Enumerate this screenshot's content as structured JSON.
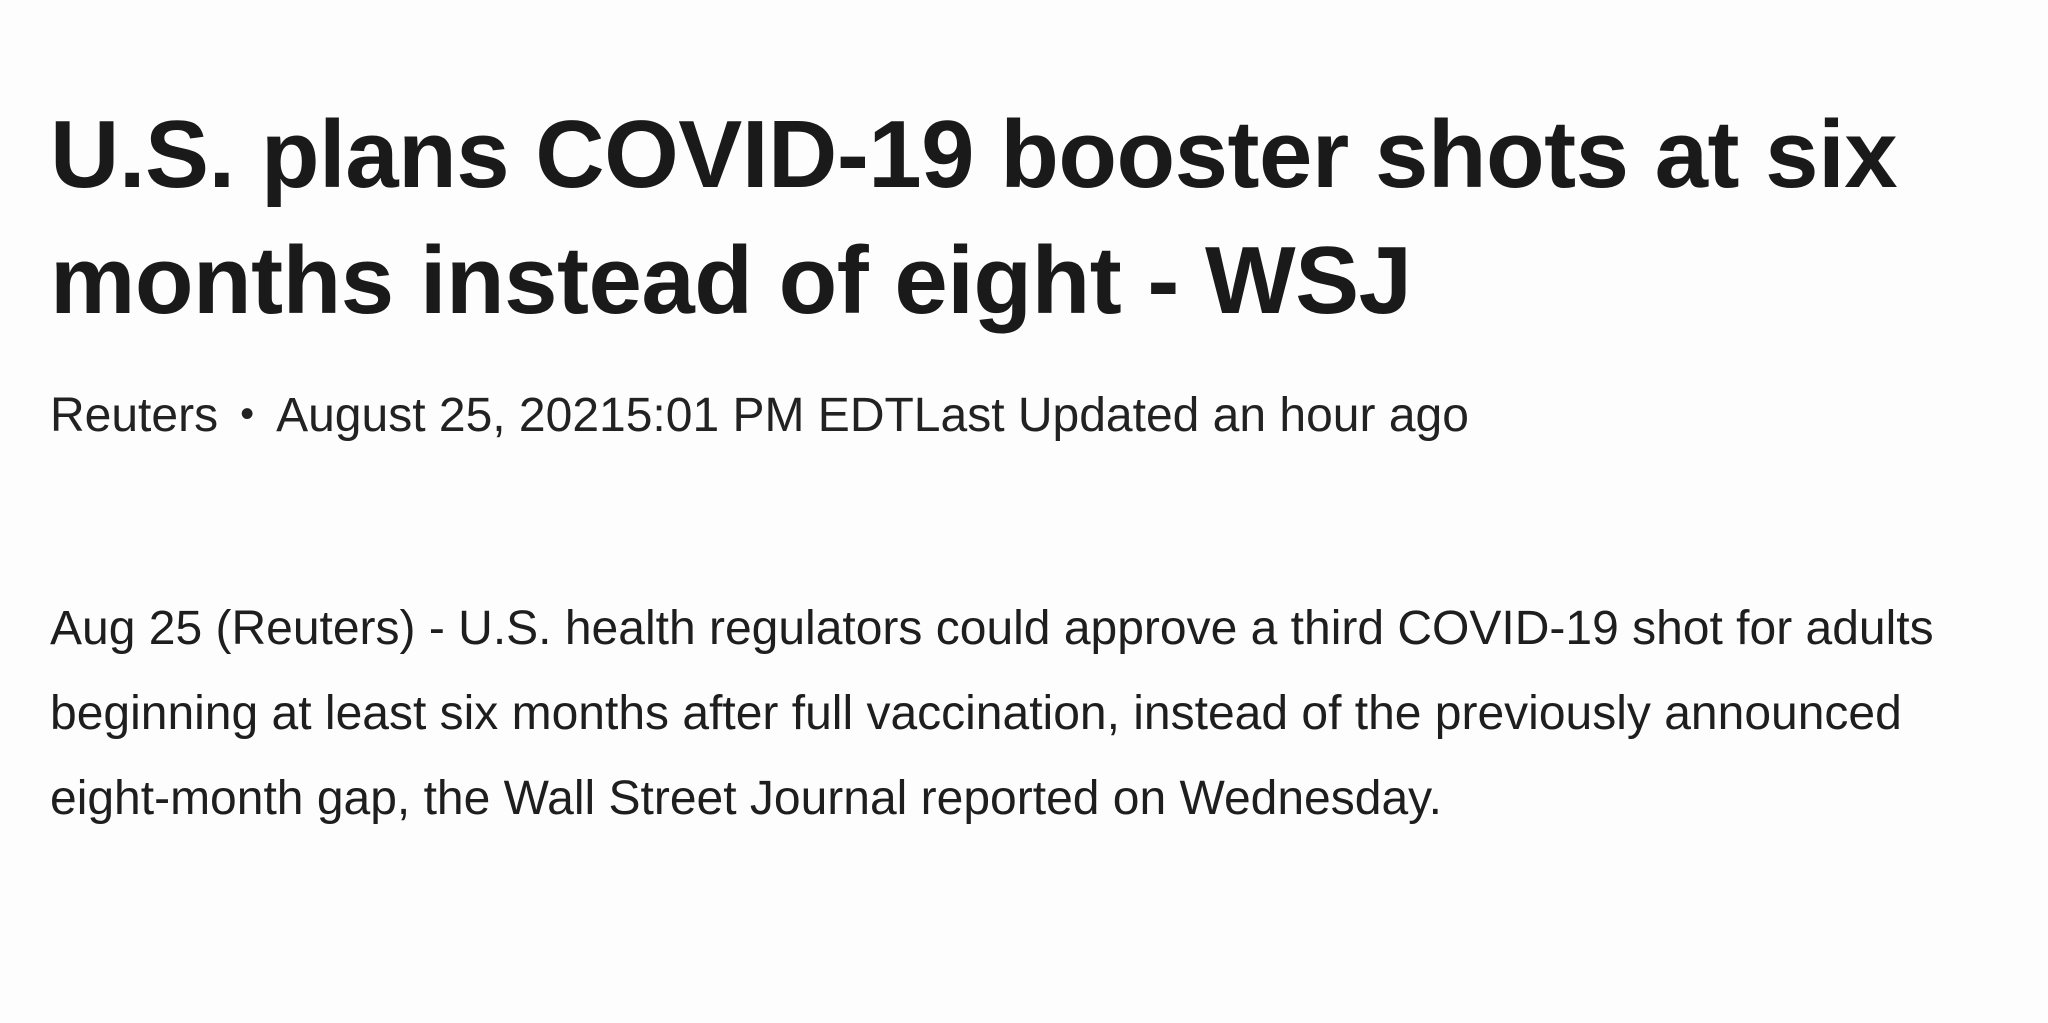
{
  "article": {
    "headline": "U.S. plans COVID-19 booster shots at six months instead of eight - WSJ",
    "source": "Reuters",
    "separator": "•",
    "timestamp": "August 25, 20215:01 PM EDTLast Updated an hour ago",
    "body": "Aug 25 (Reuters) - U.S. health regulators could approve a third COVID-19 shot for adults beginning at least six months after full vaccination, instead of the previously announced eight-month gap, the Wall Street Journal reported on Wednesday."
  }
}
